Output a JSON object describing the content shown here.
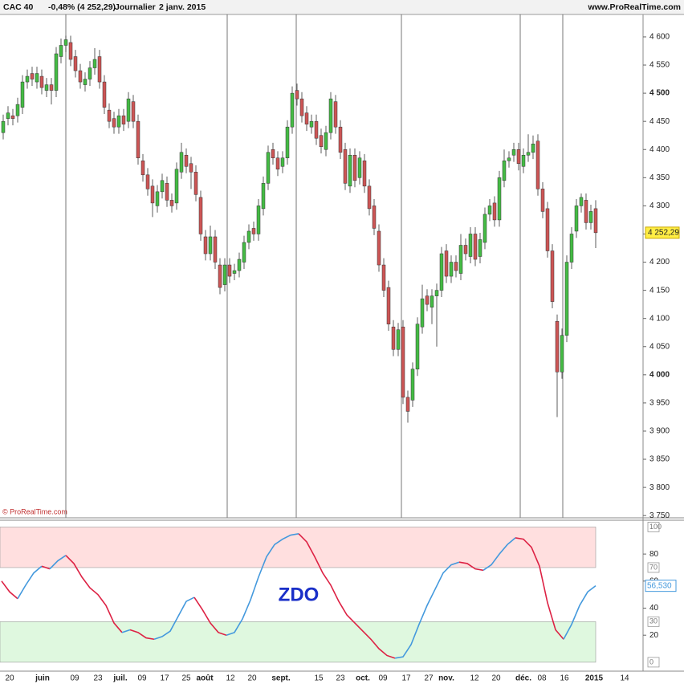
{
  "header": {
    "instrument": "CAC 40",
    "change": "-0,48% (4 252,29)",
    "period": "Journalier",
    "date": "2 janv. 2015",
    "site": "www.ProRealTime.com"
  },
  "watermark": "© ProRealTime.com",
  "x_labels": [
    "20",
    "juin",
    "09",
    "23",
    "juil.",
    "09",
    "17",
    "25",
    "août",
    "12",
    "20",
    "sept.",
    "15",
    "23",
    "oct.",
    "09",
    "17",
    "27",
    "nov.",
    "12",
    "20",
    "déc.",
    "08",
    "16",
    "2015",
    "14"
  ],
  "chart_data": [
    {
      "type": "candlestick",
      "up_color": "#44bb44",
      "down_color": "#cc5555",
      "ylim": [
        3746,
        4637
      ],
      "yticks": [
        {
          "value": 3750,
          "label": "3 750"
        },
        {
          "value": 3800,
          "label": "3 800"
        },
        {
          "value": 3850,
          "label": "3 850"
        },
        {
          "value": 3900,
          "label": "3 900"
        },
        {
          "value": 3950,
          "label": "3 950"
        },
        {
          "value": 4000,
          "label": "4 000",
          "bold": true
        },
        {
          "value": 4050,
          "label": "4 050"
        },
        {
          "value": 4100,
          "label": "4 100"
        },
        {
          "value": 4150,
          "label": "4 150"
        },
        {
          "value": 4200,
          "label": "4 200"
        },
        {
          "value": 4250,
          "label": "4 250"
        },
        {
          "value": 4300,
          "label": "4 300"
        },
        {
          "value": 4350,
          "label": "4 350"
        },
        {
          "value": 4400,
          "label": "4 400"
        },
        {
          "value": 4450,
          "label": "4 450"
        },
        {
          "value": 4500,
          "label": "4 500",
          "bold": true
        },
        {
          "value": 4550,
          "label": "4 550"
        },
        {
          "value": 4600,
          "label": "4 600"
        }
      ],
      "last_label": "4 252,29",
      "ohlc": [
        [
          4430,
          4462,
          4418,
          4450
        ],
        [
          4455,
          4477,
          4443,
          4465
        ],
        [
          4460,
          4472,
          4443,
          4455
        ],
        [
          4460,
          4492,
          4448,
          4480
        ],
        [
          4475,
          4532,
          4463,
          4520
        ],
        [
          4520,
          4542,
          4508,
          4530
        ],
        [
          4535,
          4547,
          4513,
          4525
        ],
        [
          4520,
          4547,
          4508,
          4535
        ],
        [
          4530,
          4542,
          4498,
          4510
        ],
        [
          4505,
          4527,
          4493,
          4515
        ],
        [
          4515,
          4527,
          4480,
          4505
        ],
        [
          4505,
          4582,
          4493,
          4570
        ],
        [
          4565,
          4597,
          4553,
          4585
        ],
        [
          4585,
          4602,
          4573,
          4595
        ],
        [
          4590,
          4602,
          4548,
          4560
        ],
        [
          4565,
          4577,
          4528,
          4540
        ],
        [
          4540,
          4552,
          4508,
          4520
        ],
        [
          4515,
          4537,
          4503,
          4525
        ],
        [
          4525,
          4557,
          4513,
          4545
        ],
        [
          4545,
          4580,
          4533,
          4560
        ],
        [
          4565,
          4577,
          4508,
          4520
        ],
        [
          4520,
          4532,
          4463,
          4475
        ],
        [
          4470,
          4482,
          4438,
          4450
        ],
        [
          4455,
          4467,
          4428,
          4440
        ],
        [
          4440,
          4472,
          4428,
          4460
        ],
        [
          4460,
          4472,
          4433,
          4445
        ],
        [
          4450,
          4502,
          4438,
          4490
        ],
        [
          4485,
          4497,
          4438,
          4450
        ],
        [
          4450,
          4462,
          4373,
          4385
        ],
        [
          4380,
          4392,
          4343,
          4355
        ],
        [
          4355,
          4367,
          4318,
          4330
        ],
        [
          4335,
          4347,
          4280,
          4305
        ],
        [
          4300,
          4337,
          4288,
          4325
        ],
        [
          4325,
          4357,
          4313,
          4345
        ],
        [
          4340,
          4352,
          4298,
          4310
        ],
        [
          4310,
          4322,
          4288,
          4300
        ],
        [
          4305,
          4377,
          4293,
          4365
        ],
        [
          4360,
          4412,
          4348,
          4395
        ],
        [
          4390,
          4402,
          4358,
          4370
        ],
        [
          4375,
          4387,
          4330,
          4360
        ],
        [
          4360,
          4372,
          4308,
          4320
        ],
        [
          4315,
          4327,
          4238,
          4250
        ],
        [
          4245,
          4257,
          4203,
          4215
        ],
        [
          4215,
          4265,
          4203,
          4245
        ],
        [
          4245,
          4257,
          4188,
          4200
        ],
        [
          4195,
          4207,
          4143,
          4155
        ],
        [
          4160,
          4207,
          4148,
          4195
        ],
        [
          4195,
          4207,
          4163,
          4175
        ],
        [
          4180,
          4197,
          4168,
          4185
        ],
        [
          4185,
          4217,
          4173,
          4205
        ],
        [
          4200,
          4247,
          4188,
          4235
        ],
        [
          4235,
          4267,
          4223,
          4255
        ],
        [
          4260,
          4272,
          4238,
          4250
        ],
        [
          4250,
          4312,
          4238,
          4300
        ],
        [
          4295,
          4352,
          4283,
          4340
        ],
        [
          4340,
          4407,
          4328,
          4395
        ],
        [
          4400,
          4412,
          4373,
          4385
        ],
        [
          4385,
          4397,
          4353,
          4365
        ],
        [
          4370,
          4397,
          4358,
          4385
        ],
        [
          4385,
          4452,
          4373,
          4440
        ],
        [
          4440,
          4512,
          4428,
          4500
        ],
        [
          4505,
          4517,
          4478,
          4490
        ],
        [
          4490,
          4502,
          4448,
          4460
        ],
        [
          4465,
          4477,
          4433,
          4445
        ],
        [
          4440,
          4462,
          4428,
          4450
        ],
        [
          4450,
          4462,
          4408,
          4420
        ],
        [
          4425,
          4437,
          4393,
          4405
        ],
        [
          4400,
          4442,
          4388,
          4430
        ],
        [
          4430,
          4502,
          4418,
          4490
        ],
        [
          4485,
          4497,
          4428,
          4440
        ],
        [
          4440,
          4452,
          4383,
          4395
        ],
        [
          4400,
          4412,
          4328,
          4340
        ],
        [
          4335,
          4402,
          4323,
          4390
        ],
        [
          4390,
          4402,
          4333,
          4345
        ],
        [
          4350,
          4397,
          4338,
          4385
        ],
        [
          4380,
          4392,
          4323,
          4335
        ],
        [
          4335,
          4347,
          4283,
          4295
        ],
        [
          4300,
          4312,
          4248,
          4260
        ],
        [
          4255,
          4267,
          4183,
          4195
        ],
        [
          4195,
          4207,
          4138,
          4150
        ],
        [
          4155,
          4167,
          4078,
          4090
        ],
        [
          4085,
          4097,
          4033,
          4045
        ],
        [
          4045,
          4092,
          4033,
          4080
        ],
        [
          4085,
          4097,
          3948,
          3960
        ],
        [
          3960,
          3972,
          3915,
          3935
        ],
        [
          3955,
          4022,
          3943,
          4010
        ],
        [
          4010,
          4102,
          3998,
          4090
        ],
        [
          4085,
          4160,
          4073,
          4135
        ],
        [
          4140,
          4152,
          4113,
          4125
        ],
        [
          4120,
          4152,
          4090,
          4140
        ],
        [
          4140,
          4162,
          4050,
          4150
        ],
        [
          4150,
          4227,
          4138,
          4215
        ],
        [
          4220,
          4232,
          4163,
          4175
        ],
        [
          4175,
          4212,
          4163,
          4200
        ],
        [
          4200,
          4212,
          4173,
          4185
        ],
        [
          4180,
          4250,
          4168,
          4230
        ],
        [
          4230,
          4242,
          4203,
          4215
        ],
        [
          4210,
          4262,
          4198,
          4250
        ],
        [
          4250,
          4262,
          4193,
          4205
        ],
        [
          4210,
          4252,
          4198,
          4240
        ],
        [
          4235,
          4297,
          4223,
          4285
        ],
        [
          4285,
          4312,
          4273,
          4300
        ],
        [
          4305,
          4317,
          4263,
          4275
        ],
        [
          4275,
          4362,
          4263,
          4350
        ],
        [
          4345,
          4400,
          4333,
          4380
        ],
        [
          4380,
          4397,
          4368,
          4385
        ],
        [
          4390,
          4412,
          4378,
          4400
        ],
        [
          4400,
          4412,
          4363,
          4375
        ],
        [
          4370,
          4402,
          4358,
          4390
        ],
        [
          4390,
          4427,
          4378,
          4395
        ],
        [
          4395,
          4425,
          4383,
          4410
        ],
        [
          4415,
          4427,
          4318,
          4330
        ],
        [
          4330,
          4342,
          4278,
          4290
        ],
        [
          4295,
          4307,
          4208,
          4220
        ],
        [
          4220,
          4232,
          4118,
          4130
        ],
        [
          4095,
          4107,
          3925,
          4005
        ],
        [
          4005,
          4082,
          3993,
          4070
        ],
        [
          4070,
          4212,
          4058,
          4200
        ],
        [
          4200,
          4262,
          4188,
          4250
        ],
        [
          4255,
          4312,
          4243,
          4300
        ],
        [
          4300,
          4322,
          4288,
          4315
        ],
        [
          4310,
          4322,
          4258,
          4270
        ],
        [
          4270,
          4302,
          4258,
          4290
        ],
        [
          4295,
          4310,
          4225,
          4252.29
        ]
      ]
    },
    {
      "type": "line",
      "title": "ZDO",
      "rise_color": "#4499dd",
      "fall_color": "#dd2244",
      "ylim": [
        -6,
        105
      ],
      "yticks": [
        20,
        40,
        60,
        80
      ],
      "levels": [
        0,
        30,
        70,
        100
      ],
      "zones": [
        {
          "from": 70,
          "to": 100,
          "color": "#ffdfdf"
        },
        {
          "from": 0,
          "to": 30,
          "color": "#dff8df"
        }
      ],
      "last_value_label": "56,530",
      "values": [
        60,
        52,
        47,
        57,
        66,
        71,
        69,
        75,
        79,
        73,
        63,
        55,
        50,
        42,
        29,
        22,
        24,
        22,
        18,
        17,
        19,
        23,
        34,
        45,
        48,
        39,
        29,
        22,
        20,
        22,
        32,
        46,
        63,
        78,
        87,
        91,
        94,
        95,
        89,
        78,
        66,
        57,
        45,
        35,
        29,
        23,
        17,
        10,
        5,
        3,
        4,
        13,
        28,
        42,
        54,
        66,
        72,
        74,
        73,
        69,
        68,
        72,
        80,
        87,
        92,
        91,
        85,
        71,
        44,
        24,
        17,
        28,
        42,
        52,
        56.53
      ]
    }
  ]
}
